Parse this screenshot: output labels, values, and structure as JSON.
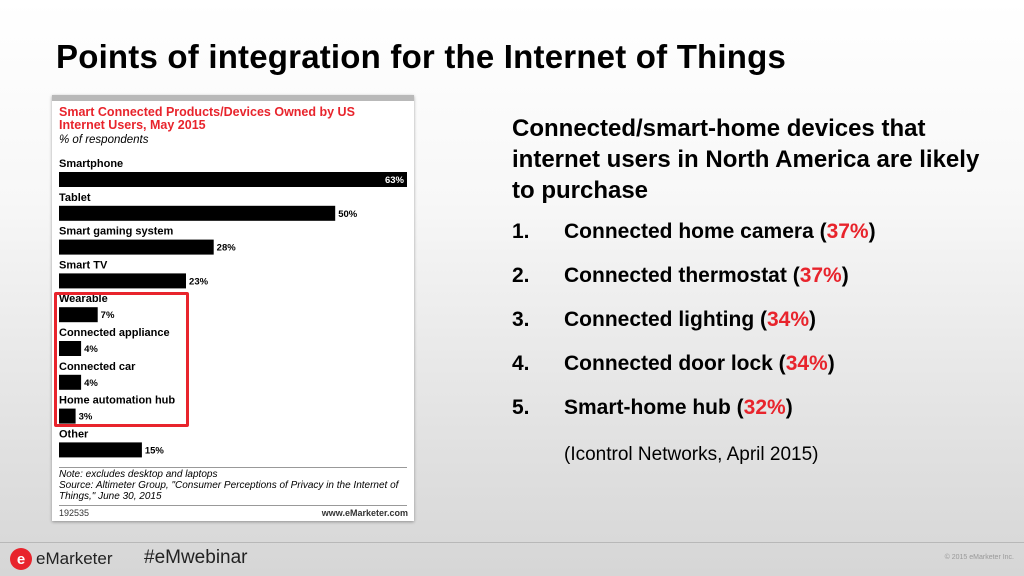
{
  "slide": {
    "title": "Points of integration for the Internet of Things"
  },
  "chart_data": {
    "type": "bar",
    "orientation": "horizontal",
    "title": "Smart Connected Products/Devices Owned by US Internet Users, May 2015",
    "subtitle": "% of respondents",
    "categories": [
      "Smartphone",
      "Tablet",
      "Smart gaming system",
      "Smart TV",
      "Wearable",
      "Connected appliance",
      "Connected car",
      "Home automation hub",
      "Other"
    ],
    "values": [
      63,
      50,
      28,
      23,
      7,
      4,
      4,
      3,
      15
    ],
    "value_labels": [
      "63%",
      "50%",
      "28%",
      "23%",
      "7%",
      "4%",
      "4%",
      "3%",
      "15%"
    ],
    "xlim": [
      0,
      63
    ],
    "bar_color": "#000000",
    "highlighted_categories": [
      "Wearable",
      "Connected appliance",
      "Connected car",
      "Home automation hub"
    ],
    "highlight_color": "#e8242c",
    "note": "Note: excludes desktop and laptops",
    "source": "Source: Altimeter Group, \"Consumer Perceptions of Privacy in the Internet of Things,\" June 30, 2015",
    "chart_id": "192535",
    "site": "www.eMarketer.com"
  },
  "right_panel": {
    "heading": "Connected/smart-home devices that internet users in North America are likely to purchase",
    "items": [
      {
        "num": "1.",
        "text": "Connected home camera (",
        "pct": "37%",
        "close": ")"
      },
      {
        "num": "2.",
        "text": "Connected thermostat (",
        "pct": "37%",
        "close": ")"
      },
      {
        "num": "3.",
        "text": "Connected lighting (",
        "pct": "34%",
        "close": ")"
      },
      {
        "num": "4.",
        "text": "Connected door lock (",
        "pct": "34%",
        "close": ")"
      },
      {
        "num": "5.",
        "text": "Smart-home hub (",
        "pct": "32%",
        "close": ")"
      }
    ],
    "source": "(Icontrol Networks, April 2015)"
  },
  "footer": {
    "logo_mark": "e",
    "logo_brand": "eMarketer",
    "hashtag": "#eMwebinar",
    "copyright": "© 2015 eMarketer Inc."
  },
  "colors": {
    "accent": "#e8242c"
  }
}
